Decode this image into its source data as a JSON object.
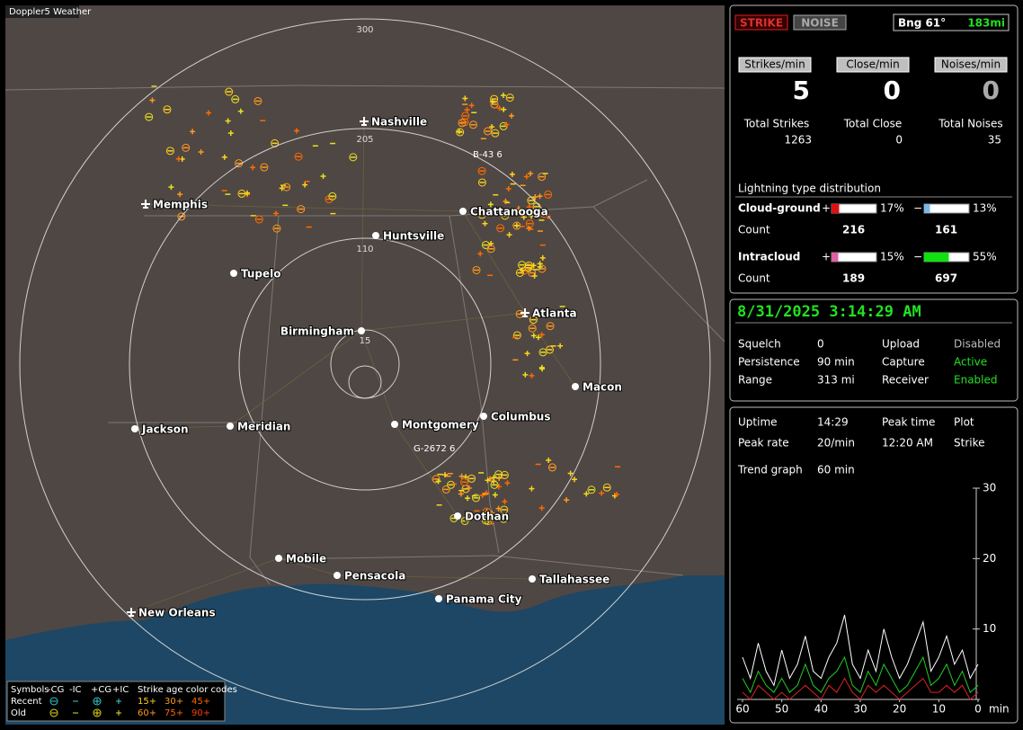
{
  "map": {
    "title": "Doppler5 Weather",
    "rings": [
      "300",
      "205",
      "110",
      "15"
    ],
    "cities": [
      "Nashville",
      "Memphis",
      "Chattanooga",
      "Huntsville",
      "Tupelo",
      "Atlanta",
      "Birmingham",
      "Macon",
      "Columbus",
      "Montgomery",
      "Jackson",
      "Meridian",
      "Dothan",
      "Mobile",
      "Pensacola",
      "Tallahassee",
      "Panama City",
      "New Orleans"
    ],
    "storm_labels": [
      "B-43 6",
      "G-2672 6"
    ],
    "legend": {
      "symbols": "Symbols",
      "types": [
        "-CG",
        "-IC",
        "+CG",
        "+IC"
      ],
      "age_title": "Strike age color codes",
      "recent": "Recent",
      "old": "Old",
      "recent_ages": [
        "15+",
        "30+",
        "45+"
      ],
      "old_ages": [
        "60+",
        "75+",
        "90+"
      ]
    }
  },
  "panel": {
    "strike": "STRIKE",
    "noise": "NOISE",
    "bearing": "Bng 61°",
    "distance": "183mi",
    "rates": [
      {
        "label": "Strikes/min",
        "value": 5
      },
      {
        "label": "Close/min",
        "value": 0
      },
      {
        "label": "Noises/min",
        "value": 0
      }
    ],
    "totals": [
      {
        "label": "Total Strikes",
        "value": 1263
      },
      {
        "label": "Total Close",
        "value": 0
      },
      {
        "label": "Total Noises",
        "value": 35
      }
    ],
    "distribution_title": "Lightning type distribution",
    "count_label": "Count",
    "types": [
      {
        "name": "Cloud-ground",
        "positive": {
          "sign": "+",
          "percent": 17,
          "percent_label": "17%",
          "count": 216,
          "color": "#e01010"
        },
        "negative": {
          "sign": "−",
          "percent": 13,
          "percent_label": "13%",
          "count": 161,
          "color": "#7ab8e8"
        }
      },
      {
        "name": "Intracloud",
        "positive": {
          "sign": "+",
          "percent": 15,
          "percent_label": "15%",
          "count": 189,
          "color": "#e060a0"
        },
        "negative": {
          "sign": "−",
          "percent": 55,
          "percent_label": "55%",
          "count": 697,
          "color": "#10e010"
        }
      }
    ],
    "datetime": "8/31/2025 3:14:29 AM",
    "status": [
      [
        "Squelch",
        "0",
        "Upload",
        "Disabled"
      ],
      [
        "Persistence",
        "90 min",
        "Capture",
        "Active"
      ],
      [
        "Range",
        "313 mi",
        "Receiver",
        "Enabled"
      ]
    ],
    "info": [
      [
        "Uptime",
        "14:29",
        "Peak time",
        "Plot"
      ],
      [
        "Peak rate",
        "20/min",
        "12:20 AM",
        "Strike"
      ]
    ],
    "trend_label": "Trend graph",
    "trend_window": "60 min"
  },
  "chart_data": {
    "type": "line",
    "x": [
      60,
      58,
      56,
      54,
      52,
      50,
      48,
      46,
      44,
      42,
      40,
      38,
      36,
      34,
      32,
      30,
      28,
      26,
      24,
      22,
      20,
      18,
      16,
      14,
      12,
      10,
      8,
      6,
      4,
      2,
      0
    ],
    "xlim": [
      60,
      0
    ],
    "xticks": [
      60,
      50,
      40,
      30,
      20,
      10,
      0
    ],
    "x_label": "min",
    "ylim": [
      0,
      30
    ],
    "yticks": [
      10,
      20,
      30
    ],
    "series": [
      {
        "color": "#ffffff",
        "values": [
          6,
          3,
          8,
          4,
          2,
          7,
          3,
          5,
          9,
          4,
          3,
          6,
          8,
          12,
          5,
          3,
          7,
          4,
          10,
          6,
          3,
          5,
          8,
          11,
          4,
          6,
          9,
          5,
          7,
          3,
          5
        ]
      },
      {
        "color": "#22cc22",
        "values": [
          3,
          1,
          4,
          2,
          1,
          3,
          1,
          2,
          5,
          2,
          1,
          3,
          4,
          6,
          2,
          1,
          4,
          2,
          5,
          3,
          1,
          2,
          4,
          6,
          2,
          3,
          5,
          2,
          4,
          1,
          2
        ]
      },
      {
        "color": "#dd2222",
        "values": [
          1,
          0,
          2,
          1,
          0,
          1,
          0,
          1,
          2,
          1,
          0,
          2,
          1,
          3,
          1,
          0,
          2,
          1,
          2,
          1,
          0,
          1,
          2,
          3,
          1,
          1,
          2,
          1,
          2,
          0,
          1
        ]
      }
    ]
  }
}
